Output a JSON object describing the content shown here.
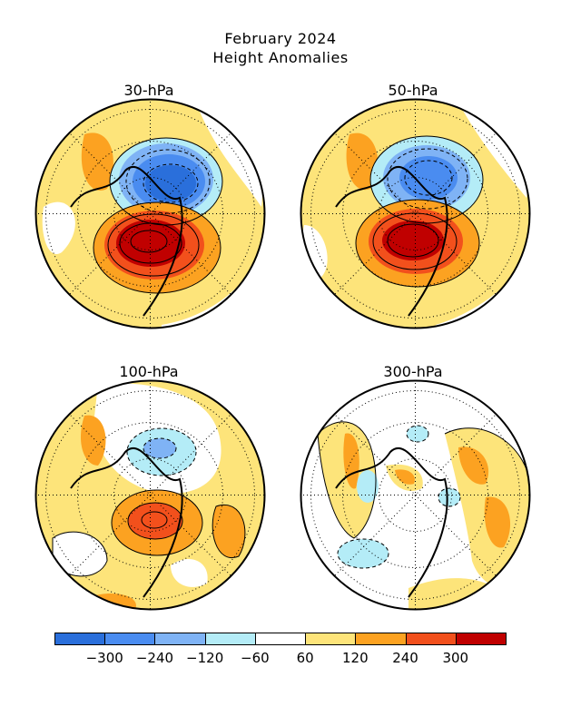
{
  "title_line1": "February 2024",
  "title_line2": "Height Anomalies",
  "panels": [
    {
      "label": "30-hPa"
    },
    {
      "label": "50-hPa"
    },
    {
      "label": "100-hPa"
    },
    {
      "label": "300-hPa"
    }
  ],
  "colorbar": {
    "colors": [
      "#2a6fdb",
      "#4a8cf0",
      "#7fb3f5",
      "#b4ecf7",
      "#ffffff",
      "#fde47a",
      "#fca221",
      "#f2501c",
      "#c00000"
    ],
    "tick_labels": [
      "−300",
      "−240",
      "−120",
      "−60",
      "60",
      "120",
      "240",
      "300"
    ]
  },
  "palette": {
    "light_yellow": "#fde47a",
    "orange": "#fca221",
    "red": "#f2501c",
    "dark_red": "#c00000",
    "light_blue": "#b4ecf7",
    "mid_blue": "#7fb3f5",
    "blue": "#4a8cf0",
    "dark_blue": "#2a6fdb"
  }
}
